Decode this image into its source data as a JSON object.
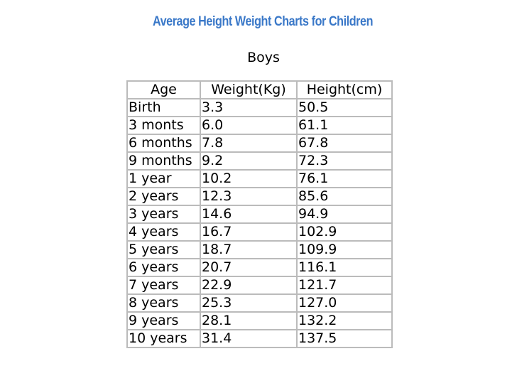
{
  "header": {
    "title": "Average Height Weight Charts for Children",
    "subtitle": "Boys"
  },
  "table": {
    "columns": [
      "Age",
      "Weight(Kg)",
      "Height(cm)"
    ],
    "rows": [
      [
        "Birth",
        "3.3",
        "50.5"
      ],
      [
        "3 monts",
        "6.0",
        "61.1"
      ],
      [
        "6 months",
        "7.8",
        "67.8"
      ],
      [
        "9 months",
        "9.2",
        "72.3"
      ],
      [
        "1 year",
        "10.2",
        "76.1"
      ],
      [
        "2 years",
        "12.3",
        "85.6"
      ],
      [
        "3 years",
        "14.6",
        "94.9"
      ],
      [
        "4 years",
        "16.7",
        "102.9"
      ],
      [
        "5 years",
        "18.7",
        "109.9"
      ],
      [
        "6 years",
        "20.7",
        "116.1"
      ],
      [
        "7 years",
        "22.9",
        "121.7"
      ],
      [
        "8 years",
        "25.3",
        "127.0"
      ],
      [
        "9 years",
        "28.1",
        "132.2"
      ],
      [
        "10 years",
        "31.4",
        "137.5"
      ]
    ]
  }
}
